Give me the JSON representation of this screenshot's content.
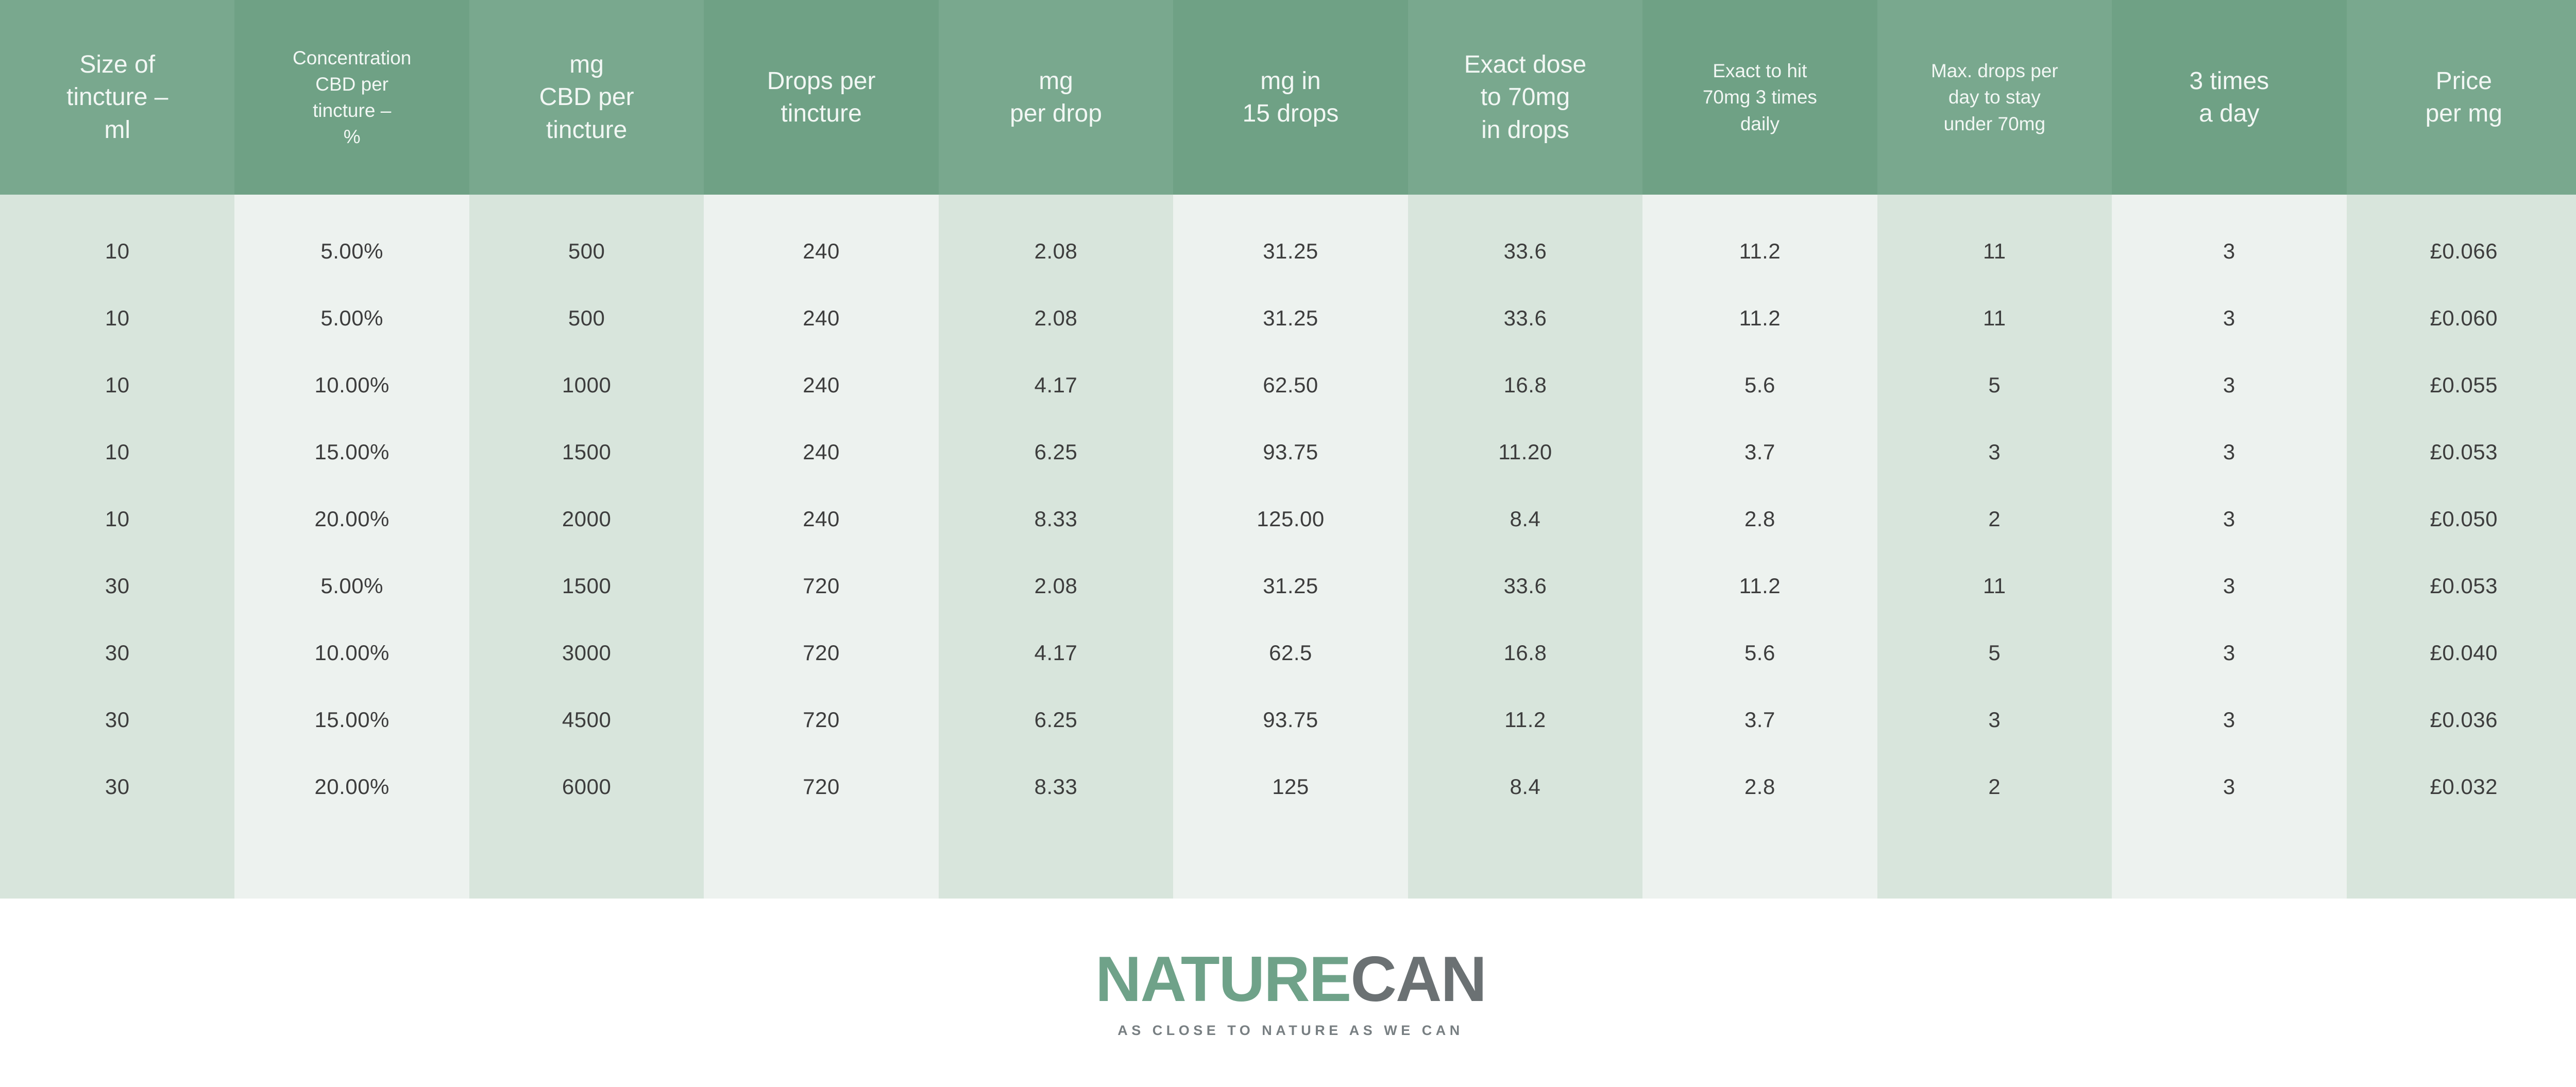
{
  "colors": {
    "header_col_a": "#79a88e",
    "header_col_b": "#6fa185",
    "body_col_a": "#d8e5dc",
    "body_col_b": "#edf2ef",
    "header_text": "#f2f7f4",
    "body_text": "#3d3d3d",
    "logo_nature": "#6fa289",
    "logo_can": "#6b7173",
    "tagline_gray": "#787f82",
    "page_background": "#ffffff"
  },
  "table": {
    "columns": [
      {
        "lines": [
          "Size of",
          "tincture –",
          "ml"
        ],
        "size": "large"
      },
      {
        "lines": [
          "Concentration",
          "CBD per",
          "tincture –",
          "%"
        ],
        "size": "small"
      },
      {
        "lines": [
          "mg",
          "CBD per",
          "tincture"
        ],
        "size": "large"
      },
      {
        "lines": [
          "Drops per",
          "tincture"
        ],
        "size": "large"
      },
      {
        "lines": [
          "mg",
          "per drop"
        ],
        "size": "large"
      },
      {
        "lines": [
          "mg in",
          "15 drops"
        ],
        "size": "large"
      },
      {
        "lines": [
          "Exact dose",
          "to 70mg",
          "in drops"
        ],
        "size": "large"
      },
      {
        "lines": [
          "Exact to hit",
          "70mg 3 times",
          "daily"
        ],
        "size": "small"
      },
      {
        "lines": [
          "Max. drops per",
          "day to stay",
          "under 70mg"
        ],
        "size": "small"
      },
      {
        "lines": [
          "3 times",
          "a day"
        ],
        "size": "large"
      },
      {
        "lines": [
          "Price",
          "per mg"
        ],
        "size": "large"
      }
    ]
  },
  "chart_data": {
    "type": "table",
    "title": "CBD tincture dosage table",
    "columns": [
      "Size of tincture – ml",
      "Concentration CBD per tincture – %",
      "mg CBD per tincture",
      "Drops per tincture",
      "mg per drop",
      "mg in 15 drops",
      "Exact dose to 70mg in drops",
      "Exact to hit 70mg 3 times daily",
      "Max. drops per day to stay under 70mg",
      "3 times a day",
      "Price per mg"
    ],
    "rows": [
      [
        "10",
        "5.00%",
        "500",
        "240",
        "2.08",
        "31.25",
        "33.6",
        "11.2",
        "11",
        "3",
        "£0.066"
      ],
      [
        "10",
        "5.00%",
        "500",
        "240",
        "2.08",
        "31.25",
        "33.6",
        "11.2",
        "11",
        "3",
        "£0.060"
      ],
      [
        "10",
        "10.00%",
        "1000",
        "240",
        "4.17",
        "62.50",
        "16.8",
        "5.6",
        "5",
        "3",
        "£0.055"
      ],
      [
        "10",
        "15.00%",
        "1500",
        "240",
        "6.25",
        "93.75",
        "11.20",
        "3.7",
        "3",
        "3",
        "£0.053"
      ],
      [
        "10",
        "20.00%",
        "2000",
        "240",
        "8.33",
        "125.00",
        "8.4",
        "2.8",
        "2",
        "3",
        "£0.050"
      ],
      [
        "30",
        "5.00%",
        "1500",
        "720",
        "2.08",
        "31.25",
        "33.6",
        "11.2",
        "11",
        "3",
        "£0.053"
      ],
      [
        "30",
        "10.00%",
        "3000",
        "720",
        "4.17",
        "62.5",
        "16.8",
        "5.6",
        "5",
        "3",
        "£0.040"
      ],
      [
        "30",
        "15.00%",
        "4500",
        "720",
        "6.25",
        "93.75",
        "11.2",
        "3.7",
        "3",
        "3",
        "£0.036"
      ],
      [
        "30",
        "20.00%",
        "6000",
        "720",
        "8.33",
        "125",
        "8.4",
        "2.8",
        "2",
        "3",
        "£0.032"
      ]
    ]
  },
  "footer": {
    "brand_nature": "NATURE",
    "brand_can": "CAN",
    "tagline": "AS CLOSE TO NATURE AS WE CAN"
  }
}
